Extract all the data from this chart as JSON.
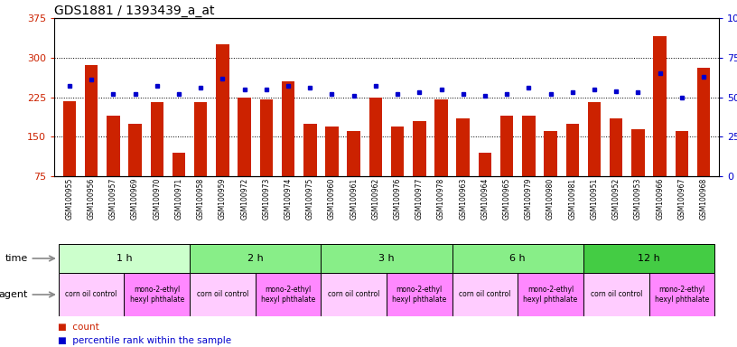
{
  "title": "GDS1881 / 1393439_a_at",
  "samples": [
    "GSM100955",
    "GSM100956",
    "GSM100957",
    "GSM100969",
    "GSM100970",
    "GSM100971",
    "GSM100958",
    "GSM100959",
    "GSM100972",
    "GSM100973",
    "GSM100974",
    "GSM100975",
    "GSM100960",
    "GSM100961",
    "GSM100962",
    "GSM100976",
    "GSM100977",
    "GSM100978",
    "GSM100963",
    "GSM100964",
    "GSM100965",
    "GSM100979",
    "GSM100980",
    "GSM100981",
    "GSM100951",
    "GSM100952",
    "GSM100953",
    "GSM100966",
    "GSM100967",
    "GSM100968"
  ],
  "count": [
    218,
    285,
    190,
    175,
    215,
    120,
    215,
    325,
    225,
    220,
    255,
    175,
    170,
    160,
    225,
    170,
    180,
    220,
    185,
    120,
    190,
    190,
    160,
    175,
    215,
    185,
    165,
    340,
    160,
    280
  ],
  "percentile": [
    57,
    61,
    52,
    52,
    57,
    52,
    56,
    62,
    55,
    55,
    57,
    56,
    52,
    51,
    57,
    52,
    53,
    55,
    52,
    51,
    52,
    56,
    52,
    53,
    55,
    54,
    53,
    65,
    50,
    63
  ],
  "bar_color": "#cc2200",
  "marker_color": "#0000cc",
  "background_color": "#ffffff",
  "left_ylim": [
    75,
    375
  ],
  "left_yticks": [
    75,
    150,
    225,
    300,
    375
  ],
  "right_ylim": [
    0,
    100
  ],
  "right_yticks": [
    0,
    25,
    50,
    75,
    100
  ],
  "time_groups": [
    {
      "label": "1 h",
      "start": 0,
      "end": 5,
      "color": "#ccffcc"
    },
    {
      "label": "2 h",
      "start": 6,
      "end": 11,
      "color": "#88ee88"
    },
    {
      "label": "3 h",
      "start": 12,
      "end": 17,
      "color": "#88ee88"
    },
    {
      "label": "6 h",
      "start": 18,
      "end": 23,
      "color": "#88ee88"
    },
    {
      "label": "12 h",
      "start": 24,
      "end": 29,
      "color": "#44cc44"
    }
  ],
  "agent_groups": [
    {
      "label": "corn oil control",
      "start": 0,
      "end": 2,
      "color": "#ffccff"
    },
    {
      "label": "mono-2-ethyl\nhexyl phthalate",
      "start": 3,
      "end": 5,
      "color": "#ff88ff"
    },
    {
      "label": "corn oil control",
      "start": 6,
      "end": 8,
      "color": "#ffccff"
    },
    {
      "label": "mono-2-ethyl\nhexyl phthalate",
      "start": 9,
      "end": 11,
      "color": "#ff88ff"
    },
    {
      "label": "corn oil control",
      "start": 12,
      "end": 14,
      "color": "#ffccff"
    },
    {
      "label": "mono-2-ethyl\nhexyl phthalate",
      "start": 15,
      "end": 17,
      "color": "#ff88ff"
    },
    {
      "label": "corn oil control",
      "start": 18,
      "end": 20,
      "color": "#ffccff"
    },
    {
      "label": "mono-2-ethyl\nhexyl phthalate",
      "start": 21,
      "end": 23,
      "color": "#ff88ff"
    },
    {
      "label": "corn oil control",
      "start": 24,
      "end": 26,
      "color": "#ffccff"
    },
    {
      "label": "mono-2-ethyl\nhexyl phthalate",
      "start": 27,
      "end": 29,
      "color": "#ff88ff"
    }
  ],
  "red_color": "#cc2200",
  "blue_color": "#0000cc",
  "tick_fontsize": 5.5,
  "title_fontsize": 10,
  "row_fontsize": 8,
  "legend_fontsize": 7.5,
  "annotation_fontsize": 8
}
